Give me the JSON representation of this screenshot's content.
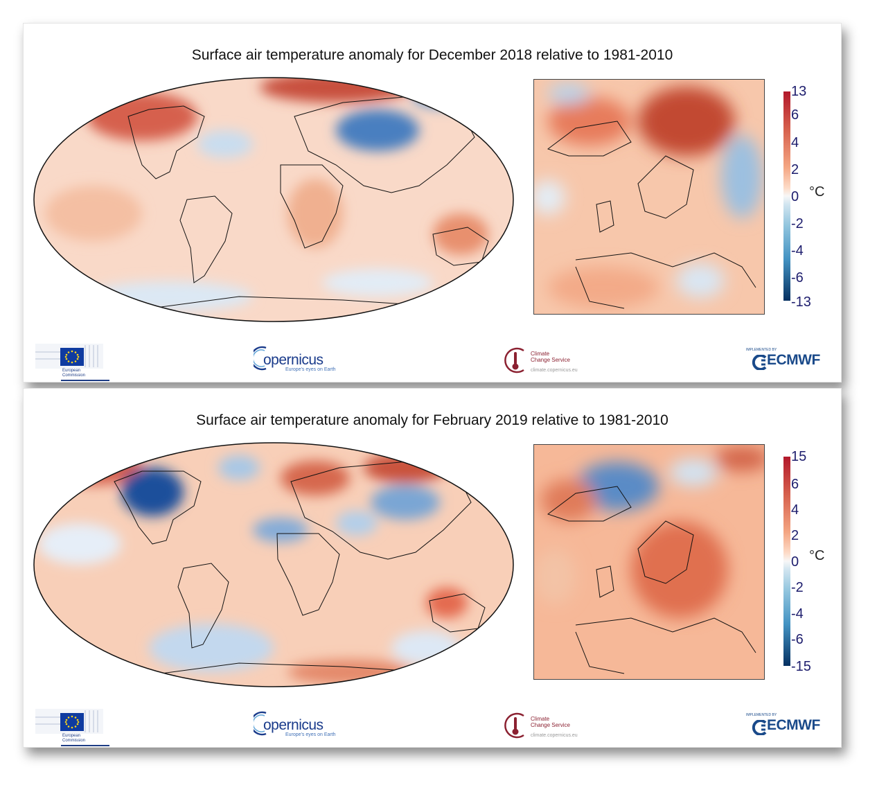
{
  "panels": [
    {
      "title": "Surface air temperature anomaly for December 2018 relative to 1981-2010",
      "colorbar": {
        "ticks": [
          "13",
          "6",
          "4",
          "2",
          "0",
          "-2",
          "-4",
          "-6",
          "-13"
        ],
        "unit": "°C"
      }
    },
    {
      "title": "Surface air temperature anomaly for February 2019 relative to 1981-2010",
      "colorbar": {
        "ticks": [
          "15",
          "6",
          "4",
          "2",
          "0",
          "-2",
          "-4",
          "-6",
          "-15"
        ],
        "unit": "°C"
      }
    }
  ],
  "logos": {
    "ec": {
      "line1": "European",
      "line2": "Commission"
    },
    "copernicus": {
      "word": "opernicus",
      "tagline": "Europe's eyes on Earth"
    },
    "c3s": {
      "line1": "Climate",
      "line2": "Change Service",
      "url": "climate.copernicus.eu"
    },
    "ecmwf": {
      "implemented": "IMPLEMENTED BY",
      "word": "ECMWF"
    }
  },
  "colors": {
    "warm": "#d6604d",
    "cold": "#2166ac",
    "neutral": "#f7f7f7"
  }
}
